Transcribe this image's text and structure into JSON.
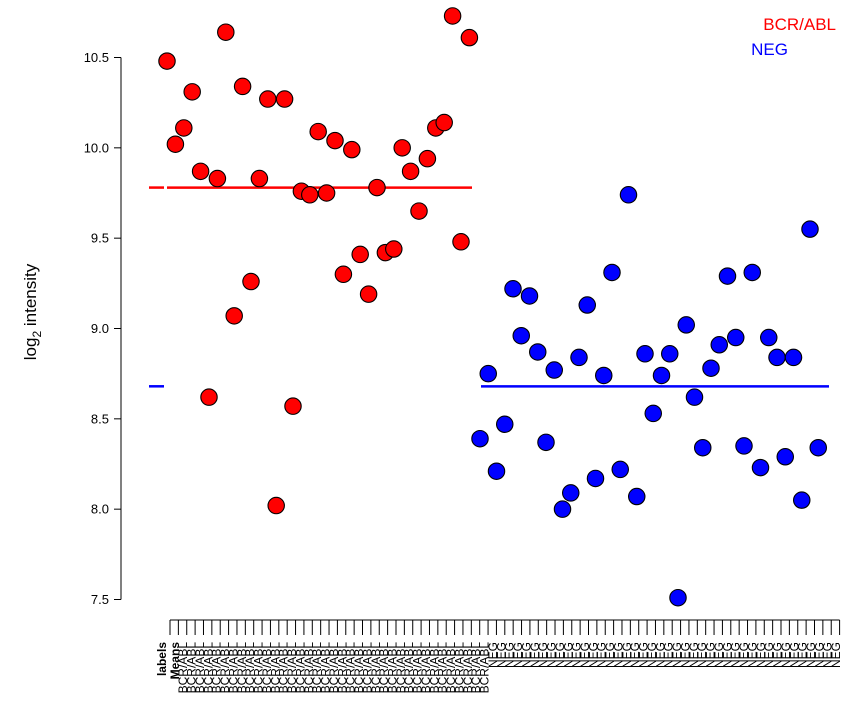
{
  "chart_data": {
    "type": "scatter",
    "ylabel_main": "log",
    "ylabel_sub": "2",
    "ylabel_rest": " intensity",
    "yticks": [
      7.5,
      8.0,
      8.5,
      9.0,
      9.5,
      10.0,
      10.5
    ],
    "ytick_labels": [
      "7.5",
      "8.0",
      "8.5",
      "9.0",
      "9.5",
      "10.0",
      "10.5"
    ],
    "ylim": [
      7.45,
      10.75
    ],
    "xtick_labels_prefix": [
      "labels",
      "Means"
    ],
    "series": [
      {
        "name": "BCR/ABL",
        "color": "#ff0000",
        "mean": 9.78,
        "labels": [
          "BCR/ABL",
          "BCR/ABL",
          "BCR/ABL",
          "BCR/ABL",
          "BCR/ABL",
          "BCR/ABL",
          "BCR/ABL",
          "BCR/ABL",
          "BCR/ABL",
          "BCR/ABL",
          "BCR/ABL",
          "BCR/ABL",
          "BCR/ABL",
          "BCR/ABL",
          "BCR/ABL",
          "BCR/ABL",
          "BCR/ABL",
          "BCR/ABL",
          "BCR/ABL",
          "BCR/ABL",
          "BCR/ABL",
          "BCR/ABL",
          "BCR/ABL",
          "BCR/ABL",
          "BCR/ABL",
          "BCR/ABL",
          "BCR/ABL",
          "BCR/ABL",
          "BCR/ABL",
          "BCR/ABL",
          "BCR/ABL",
          "BCR/ABL",
          "BCR/ABL",
          "BCR/ABL",
          "BCR/ABL",
          "BCR/ABL",
          "BCR/ABL"
        ],
        "values": [
          10.48,
          10.02,
          10.11,
          10.31,
          9.87,
          8.62,
          9.83,
          10.64,
          9.07,
          10.34,
          9.26,
          9.83,
          10.27,
          8.02,
          10.27,
          8.57,
          9.76,
          9.74,
          10.09,
          9.75,
          10.04,
          9.3,
          9.99,
          9.41,
          9.19,
          9.78,
          9.42,
          9.44,
          10.0,
          9.87,
          9.65,
          9.94,
          10.11,
          10.14,
          10.73,
          9.48,
          10.61
        ]
      },
      {
        "name": "NEG",
        "color": "#0000ff",
        "mean": 8.68,
        "labels": [
          "NEG",
          "NEG",
          "NEG",
          "NEG",
          "NEG",
          "NEG",
          "NEG",
          "NEG",
          "NEG",
          "NEG",
          "NEG",
          "NEG",
          "NEG",
          "NEG",
          "NEG",
          "NEG",
          "NEG",
          "NEG",
          "NEG",
          "NEG",
          "NEG",
          "NEG",
          "NEG",
          "NEG",
          "NEG",
          "NEG",
          "NEG",
          "NEG",
          "NEG",
          "NEG",
          "NEG",
          "NEG",
          "NEG",
          "NEG",
          "NEG",
          "NEG",
          "NEG",
          "NEG",
          "NEG",
          "NEG",
          "NEG",
          "NEG"
        ],
        "values": [
          8.39,
          8.75,
          8.21,
          8.47,
          9.22,
          8.96,
          9.18,
          8.87,
          8.37,
          8.77,
          8.0,
          8.09,
          8.84,
          9.13,
          8.17,
          8.74,
          9.31,
          8.22,
          9.74,
          8.07,
          8.86,
          8.53,
          8.74,
          8.86,
          7.51,
          9.02,
          8.62,
          8.34,
          8.78,
          8.91,
          9.29,
          8.95,
          8.35,
          9.31,
          8.23,
          8.95,
          8.84,
          8.29,
          8.84,
          8.05,
          9.55,
          8.34
        ]
      }
    ],
    "legend": [
      "BCR/ABL",
      "NEG"
    ],
    "legend_position": "top-right"
  }
}
